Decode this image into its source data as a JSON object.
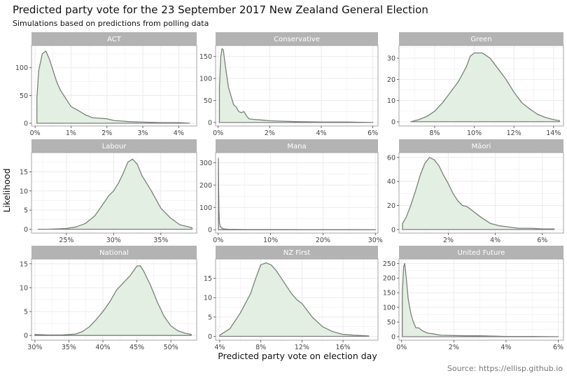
{
  "header": {
    "title": "Predicted party vote for the 23 September 2017 New Zealand General Election",
    "subtitle": "Simulations based on predictions from polling data"
  },
  "axes": {
    "xlabel": "Predicted party vote on election day",
    "ylabel": "Likelihood"
  },
  "caption": "Source: https://ellisp.github.io",
  "colors": {
    "fill": "#e3efe3",
    "line": "#7a807a",
    "strip": "#b3b3b3",
    "grid": "#ebebeb",
    "border": "#a6a6a6"
  },
  "chart_data": [
    {
      "type": "area",
      "panel": "ACT",
      "xlim": [
        -0.1,
        4.5
      ],
      "ylim": [
        -5,
        140
      ],
      "xticks": [
        0,
        1,
        2,
        3,
        4
      ],
      "xtick_labels": [
        "0%",
        "1%",
        "2%",
        "3%",
        "4%"
      ],
      "yticks": [
        0,
        50,
        100
      ],
      "ytick_labels": [
        "0",
        "50",
        "100"
      ],
      "x": [
        0.05,
        0.1,
        0.2,
        0.3,
        0.4,
        0.5,
        0.6,
        0.7,
        0.8,
        0.9,
        1.0,
        1.2,
        1.4,
        1.6,
        1.8,
        2.0,
        2.2,
        2.4,
        2.6,
        3.0,
        3.5,
        4.0,
        4.3
      ],
      "y": [
        45,
        95,
        125,
        130,
        115,
        95,
        75,
        60,
        50,
        40,
        30,
        23,
        15,
        10,
        9,
        8,
        5,
        4,
        3,
        2,
        1,
        1,
        0
      ]
    },
    {
      "type": "area",
      "panel": "Conservative",
      "xlim": [
        -0.1,
        6.2
      ],
      "ylim": [
        -8,
        175
      ],
      "xticks": [
        0,
        2,
        4,
        6
      ],
      "xtick_labels": [
        "0%",
        "2%",
        "4%",
        "6%"
      ],
      "yticks": [
        0,
        50,
        100,
        150
      ],
      "ytick_labels": [
        "0",
        "50",
        "100",
        "150"
      ],
      "x": [
        0.05,
        0.1,
        0.15,
        0.2,
        0.3,
        0.4,
        0.5,
        0.6,
        0.7,
        0.8,
        0.9,
        1.0,
        1.1,
        1.2,
        1.4,
        1.6,
        2.0,
        2.5,
        3.0,
        4.0,
        5.0,
        6.0
      ],
      "y": [
        80,
        150,
        168,
        165,
        120,
        80,
        60,
        40,
        35,
        25,
        22,
        25,
        15,
        8,
        7,
        6,
        4,
        3,
        2,
        1,
        1,
        0
      ]
    },
    {
      "type": "area",
      "panel": "Green",
      "xlim": [
        6.2,
        14.5
      ],
      "ylim": [
        -2,
        36
      ],
      "xticks": [
        8,
        10,
        12,
        14
      ],
      "xtick_labels": [
        "8%",
        "10%",
        "12%",
        "14%"
      ],
      "yticks": [
        0,
        10,
        20,
        30
      ],
      "ytick_labels": [
        "0",
        "10",
        "20",
        "30"
      ],
      "x": [
        6.8,
        7.2,
        7.6,
        8.0,
        8.4,
        8.8,
        9.2,
        9.6,
        9.8,
        10.0,
        10.4,
        10.8,
        11.2,
        11.6,
        12.0,
        12.4,
        12.8,
        13.2,
        13.6,
        14.0,
        14.3
      ],
      "y": [
        0,
        1,
        2.5,
        5,
        9,
        14,
        19,
        26,
        31,
        32.5,
        32.5,
        30,
        25,
        20,
        14,
        9,
        6,
        3.5,
        2,
        1,
        0.5
      ]
    },
    {
      "type": "area",
      "panel": "Labour",
      "xlim": [
        21.3,
        38.8
      ],
      "ylim": [
        -1,
        20
      ],
      "xticks": [
        25,
        30,
        35
      ],
      "xtick_labels": [
        "25%",
        "30%",
        "35%"
      ],
      "yticks": [
        0,
        5,
        10,
        15
      ],
      "ytick_labels": [
        "0",
        "5",
        "10",
        "15"
      ],
      "x": [
        22,
        23,
        24,
        25,
        26,
        27,
        28,
        29,
        29.5,
        30,
        30.5,
        31,
        31.5,
        32,
        32.5,
        33,
        34,
        35,
        36,
        37,
        38,
        38.3
      ],
      "y": [
        0,
        0,
        0.1,
        0.2,
        0.6,
        1.5,
        3.5,
        7,
        8.8,
        10,
        12,
        14.5,
        17.5,
        18.3,
        17,
        14,
        10,
        5.5,
        3,
        1.2,
        0.6,
        0.4
      ]
    },
    {
      "type": "area",
      "panel": "Mana",
      "xlim": [
        -0.5,
        30.5
      ],
      "ylim": [
        -15,
        345
      ],
      "xticks": [
        0,
        10,
        20,
        30
      ],
      "xtick_labels": [
        "0%",
        "10%",
        "20%",
        "30%"
      ],
      "yticks": [
        0,
        100,
        200,
        300
      ],
      "ytick_labels": [
        "0",
        "100",
        "200",
        "300"
      ],
      "x": [
        0.03,
        0.08,
        0.15,
        0.25,
        0.4,
        0.6,
        0.8,
        1.0,
        1.5,
        2.0,
        3.0,
        5.0,
        8.0,
        12.0,
        16.0,
        20.0,
        25.0,
        30.0
      ],
      "y": [
        320,
        200,
        80,
        30,
        15,
        10,
        6,
        4,
        3,
        2,
        2,
        1,
        1,
        1,
        0.5,
        0.5,
        0.5,
        0
      ]
    },
    {
      "type": "area",
      "panel": "Māori",
      "xlim": [
        -0.1,
        6.9
      ],
      "ylim": [
        -3,
        64
      ],
      "xticks": [
        2,
        4,
        6
      ],
      "xtick_labels": [
        "2%",
        "4%",
        "6%"
      ],
      "yticks": [
        0,
        20,
        40,
        60
      ],
      "ytick_labels": [
        "0",
        "20",
        "40",
        "60"
      ],
      "x": [
        0.05,
        0.2,
        0.4,
        0.6,
        0.8,
        1.0,
        1.2,
        1.4,
        1.6,
        1.8,
        2.0,
        2.2,
        2.4,
        2.6,
        2.8,
        3.0,
        3.4,
        3.8,
        4.2,
        4.6,
        5.0,
        5.5,
        6.0,
        6.5
      ],
      "y": [
        5,
        10,
        20,
        32,
        45,
        55,
        60,
        58,
        53,
        45,
        38,
        30,
        24,
        20,
        19,
        16,
        10,
        5,
        3,
        2,
        1,
        1,
        0.5,
        0.5
      ]
    },
    {
      "type": "area",
      "panel": "National",
      "xlim": [
        29.5,
        53.8
      ],
      "ylim": [
        -1,
        16
      ],
      "xticks": [
        30,
        35,
        40,
        45,
        50
      ],
      "xtick_labels": [
        "30%",
        "35%",
        "40%",
        "45%",
        "50%"
      ],
      "yticks": [
        0,
        5,
        10,
        15
      ],
      "ytick_labels": [
        "0",
        "5",
        "10",
        "15"
      ],
      "x": [
        30,
        32,
        34,
        36,
        37,
        38,
        39,
        40,
        41,
        42,
        43,
        44,
        45,
        45.5,
        46,
        47,
        48,
        49,
        50,
        51,
        52,
        53
      ],
      "y": [
        0.2,
        0.1,
        0.1,
        0.3,
        0.8,
        1.8,
        3.3,
        5,
        7,
        9.5,
        11,
        12.5,
        14.5,
        14.6,
        13.5,
        10.5,
        7,
        4,
        2,
        1,
        0.5,
        0.2
      ]
    },
    {
      "type": "area",
      "panel": "NZ First",
      "xlim": [
        3.6,
        19.4
      ],
      "ylim": [
        -1,
        20
      ],
      "xticks": [
        4,
        8,
        12,
        16
      ],
      "xtick_labels": [
        "4%",
        "8%",
        "12%",
        "16%"
      ],
      "yticks": [
        0,
        5,
        10,
        15
      ],
      "ytick_labels": [
        "0",
        "5",
        "10",
        "15"
      ],
      "x": [
        4,
        5,
        6,
        7,
        7.5,
        8,
        8.5,
        9,
        9.5,
        10,
        10.5,
        11,
        11.5,
        12,
        13,
        14,
        15,
        16,
        17,
        18.5
      ],
      "y": [
        0.3,
        2,
        6,
        11,
        15,
        18.5,
        19,
        18.5,
        17,
        15,
        13,
        11,
        9.5,
        8.5,
        5,
        2.5,
        1.2,
        0.5,
        0.3,
        0.1
      ]
    },
    {
      "type": "area",
      "panel": "United Future",
      "xlim": [
        -0.1,
        6.2
      ],
      "ylim": [
        -12,
        265
      ],
      "xticks": [
        0,
        2,
        4,
        6
      ],
      "xtick_labels": [
        "0%",
        "2%",
        "4%",
        "6%"
      ],
      "yticks": [
        0,
        50,
        100,
        150,
        200,
        250
      ],
      "ytick_labels": [
        "0",
        "50",
        "100",
        "150",
        "200",
        "250"
      ],
      "x": [
        0.03,
        0.08,
        0.12,
        0.18,
        0.25,
        0.35,
        0.45,
        0.55,
        0.65,
        0.8,
        1.0,
        1.2,
        1.5,
        2.0,
        2.5,
        3.0,
        4.0,
        5.0,
        6.0
      ],
      "y": [
        150,
        240,
        250,
        200,
        130,
        80,
        50,
        30,
        30,
        20,
        12,
        10,
        5,
        4,
        3,
        3,
        1,
        1,
        0
      ]
    }
  ]
}
